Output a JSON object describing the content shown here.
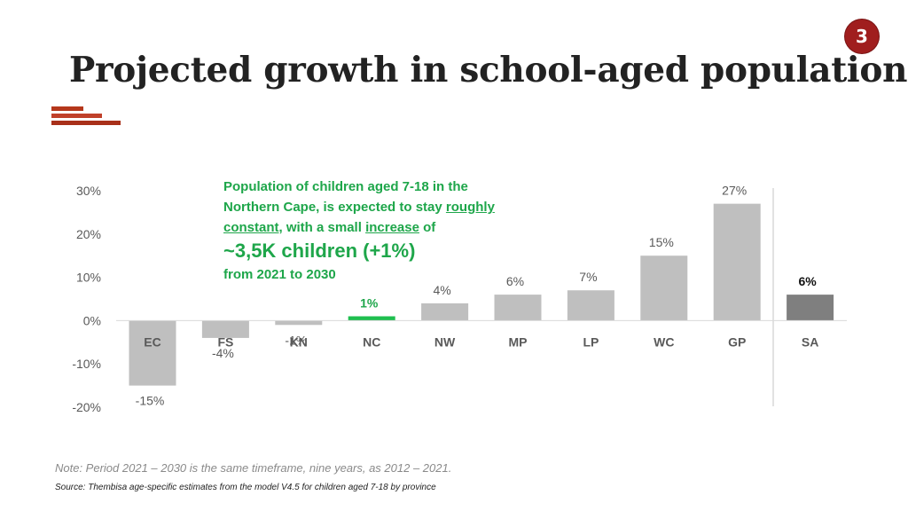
{
  "page": {
    "number": "3"
  },
  "title": "Projected growth in school-aged population",
  "callout": {
    "line1": "Population of children aged 7-18 in the",
    "line2": "Northern Cape, is expected to stay",
    "roughly": "roughly",
    "constant": "constant",
    "mid": ", with a small",
    "increase": "increase",
    "of": "of",
    "highlight": "~3,5K children (+1%)",
    "period": "from 2021 to 2030"
  },
  "note": "Note: Period 2021 – 2030 is the same timeframe, nine years, as 2012 – 2021.",
  "source": "Source: Thembisa age-specific estimates from the model V4.5 for children aged 7-18 by province",
  "colors": {
    "bar": "#bfbfbf",
    "highlight": "#1fbf4f",
    "total": "#7f7f7f",
    "highlight_text": "#1ea64a"
  },
  "chart_data": {
    "type": "bar",
    "categories": [
      "EC",
      "FS",
      "KN",
      "NC",
      "NW",
      "MP",
      "LP",
      "WC",
      "GP",
      "SA"
    ],
    "values": [
      -15,
      -4,
      -1,
      1,
      4,
      6,
      7,
      15,
      27,
      6
    ],
    "value_labels": [
      "-15%",
      "-4%",
      "-1%",
      "1%",
      "4%",
      "6%",
      "7%",
      "15%",
      "27%",
      "6%"
    ],
    "highlight_category": "NC",
    "total_category": "SA",
    "title": "",
    "xlabel": "",
    "ylabel": "",
    "ylim": [
      -20,
      30
    ],
    "yticks": [
      30,
      20,
      10,
      0,
      -10,
      -20
    ],
    "ytick_labels": [
      "30%",
      "20%",
      "10%",
      "0%",
      "-10%",
      "-20%"
    ],
    "grid": false,
    "legend": "none"
  }
}
